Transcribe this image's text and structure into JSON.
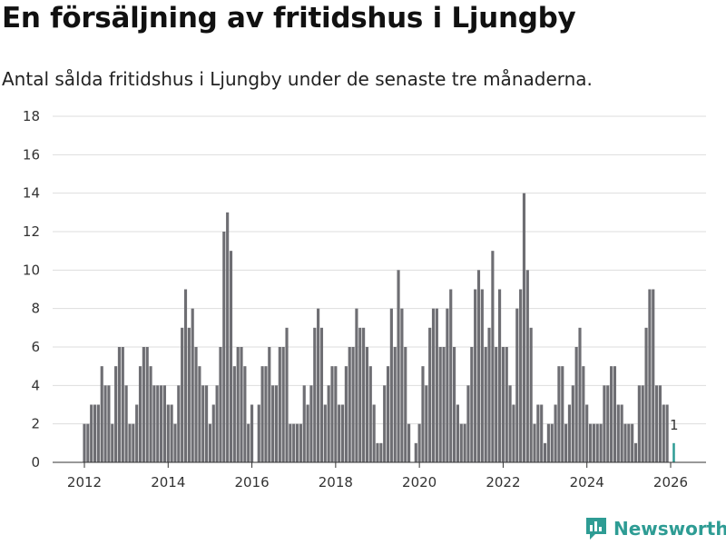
{
  "chart_data": {
    "type": "bar",
    "title": "En försäljning av fritidshus i Ljungby",
    "subtitle": "Antal sålda fritidshus i Ljungby under de senaste tre månaderna.",
    "xlabel": "",
    "ylabel": "",
    "ylim": [
      0,
      18
    ],
    "yticks": [
      0,
      2,
      4,
      6,
      8,
      10,
      12,
      14,
      16,
      18
    ],
    "xticks": [
      2012,
      2014,
      2016,
      2018,
      2020,
      2022,
      2024,
      2026
    ],
    "x_start": 2012.0,
    "x_step_years": 0.08333,
    "grid": true,
    "bar_color": "#6e6e73",
    "highlight_color": "#2e9c94",
    "values": [
      2,
      2,
      3,
      3,
      3,
      5,
      4,
      4,
      2,
      5,
      6,
      6,
      4,
      2,
      2,
      3,
      5,
      6,
      6,
      5,
      4,
      4,
      4,
      4,
      3,
      3,
      2,
      4,
      7,
      9,
      7,
      8,
      6,
      5,
      4,
      4,
      2,
      3,
      4,
      6,
      12,
      13,
      11,
      5,
      6,
      6,
      5,
      2,
      3,
      0,
      3,
      5,
      5,
      6,
      4,
      4,
      6,
      6,
      7,
      2,
      2,
      2,
      2,
      4,
      3,
      4,
      7,
      8,
      7,
      3,
      4,
      5,
      5,
      3,
      3,
      5,
      6,
      6,
      8,
      7,
      7,
      6,
      5,
      3,
      1,
      1,
      4,
      5,
      8,
      6,
      10,
      8,
      6,
      2,
      0,
      1,
      2,
      5,
      4,
      7,
      8,
      8,
      6,
      6,
      8,
      9,
      6,
      3,
      2,
      2,
      4,
      6,
      9,
      10,
      9,
      6,
      7,
      11,
      6,
      9,
      6,
      6,
      4,
      3,
      8,
      9,
      14,
      10,
      7,
      2,
      3,
      3,
      1,
      2,
      2,
      3,
      5,
      5,
      2,
      3,
      4,
      6,
      7,
      5,
      3,
      2,
      2,
      2,
      2,
      4,
      4,
      5,
      5,
      3,
      3,
      2,
      2,
      2,
      1,
      4,
      4,
      7,
      9,
      9,
      4,
      4,
      3,
      3,
      0,
      1
    ],
    "annotation": {
      "label": "1"
    }
  },
  "brand": {
    "name": "Newsworthy"
  }
}
